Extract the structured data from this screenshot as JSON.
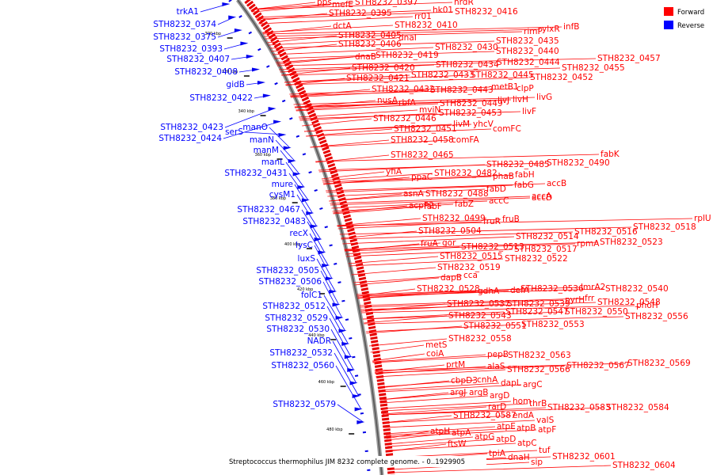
{
  "caption": "Streptococcus thermophilus JIM 8232 complete genome. - 0..1929905",
  "legend": [
    {
      "label": "Forward",
      "color": "#ff0000"
    },
    {
      "label": "Reverse",
      "color": "#0000ff"
    }
  ],
  "kbp_ticks": [
    "300 kbp",
    "320 kbp",
    "340 kbp",
    "360 kbp",
    "380 kbp",
    "400 kbp",
    "420 kbp",
    "440 kbp",
    "460 kbp",
    "480 kbp"
  ],
  "reverse_genes": [
    "trkA1",
    "STH8232_0374",
    "STH8232_0375",
    "STH8232_0393",
    "STH8232_0407",
    "STH8232_0408",
    "gidB",
    "STH8232_0422",
    "STH8232_0423",
    "STH8232_0424",
    "serS",
    "manO",
    "manN",
    "manM",
    "manL",
    "STH8232_0431",
    "mure",
    "cysM1",
    "STH8232_0467",
    "STH8232_0483",
    "recX",
    "lysC",
    "luxS",
    "STH8232_0505",
    "STH8232_0506",
    "folC1",
    "STH8232_0512",
    "STH8232_0529",
    "STH8232_0530",
    "NADR",
    "STH8232_0532",
    "STH8232_0560",
    "STH8232_0579"
  ],
  "forward_genes": [
    "pps",
    "mefE",
    "STH8232_0397",
    "nrdR",
    "STH8232_0395",
    "hk01",
    "STH8232_0416",
    "rr01",
    "dctA",
    "STH8232_0410",
    "infB",
    "rimP",
    "ylxR",
    "STH8232_0405",
    "dnaI",
    "STH8232_0435",
    "STH8232_0406",
    "STH8232_0430",
    "STH8232_0440",
    "STH8232_0457",
    "dnaB",
    "STH8232_0419",
    "STH8232_0420",
    "STH8232_0434",
    "STH8232_0444",
    "STH8232_0455",
    "STH8232_0421",
    "STH8232_0433",
    "STH8232_0445",
    "STH8232_0452",
    "metB1",
    "clpP",
    "STH8232_0432",
    "STH8232_0443",
    "nusA",
    "rbfA",
    "livJ",
    "livH",
    "livG",
    "STH8232_0449",
    "mviN",
    "STH8232_0453",
    "livF",
    "STH8232_0446",
    "livM",
    "yhcV",
    "STH8232_0451",
    "comFC",
    "STH8232_0458",
    "comFA",
    "fabK",
    "STH8232_0465",
    "STH8232_0485",
    "STH8232_0490",
    "yfiA",
    "ppaC",
    "STH8232_0482",
    "phaB",
    "fabH",
    "fabG",
    "accB",
    "fabD",
    "asnA",
    "STH8232_0488",
    "accD",
    "accA",
    "acpP2",
    "accC",
    "fabF",
    "fabZ",
    "rplU",
    "STH8232_0499",
    "fruR",
    "fruB",
    "STH8232_0516",
    "STH8232_0518",
    "STH8232_0504",
    "STH8232_0514",
    "STH8232_0523",
    "fruA",
    "gor",
    "STH8232_0513",
    "STH8232_0517",
    "rpmA",
    "STH8232_0515",
    "STH8232_0522",
    "STH8232_0519",
    "cca",
    "dapB",
    "gdhA",
    "defA",
    "STH8232_0536",
    "lmrA2",
    "STH8232_0540",
    "STH8232_0528",
    "pyrH",
    "frr",
    "STH8232_0537",
    "STH8232_0539",
    "STH8232_0548",
    "phoH",
    "STH8232_0543",
    "STH8232_0547",
    "STH8232_0550",
    "STH8232_0556",
    "STH8232_0551",
    "STH8232_0553",
    "STH8232_0558",
    "metS",
    "coiA",
    "pepB",
    "STH8232_0563",
    "prtM",
    "alaS",
    "STH8232_0566",
    "STH8232_0567",
    "STH8232_0569",
    "cbpD3",
    "cnhA",
    "dapL",
    "argC",
    "argJ",
    "argB",
    "argD",
    "hom",
    "thrB",
    "rarD",
    "STH8232_0583",
    "STH8232_0584",
    "STH8232_0587",
    "endA",
    "valS",
    "atpE",
    "atpB",
    "atpF",
    "atpH",
    "atpA",
    "atpG",
    "atpD",
    "atpC",
    "ftsW",
    "tuf",
    "tpiA",
    "dnaH",
    "sip",
    "STH8232_0601",
    "STH8232_0604"
  ]
}
